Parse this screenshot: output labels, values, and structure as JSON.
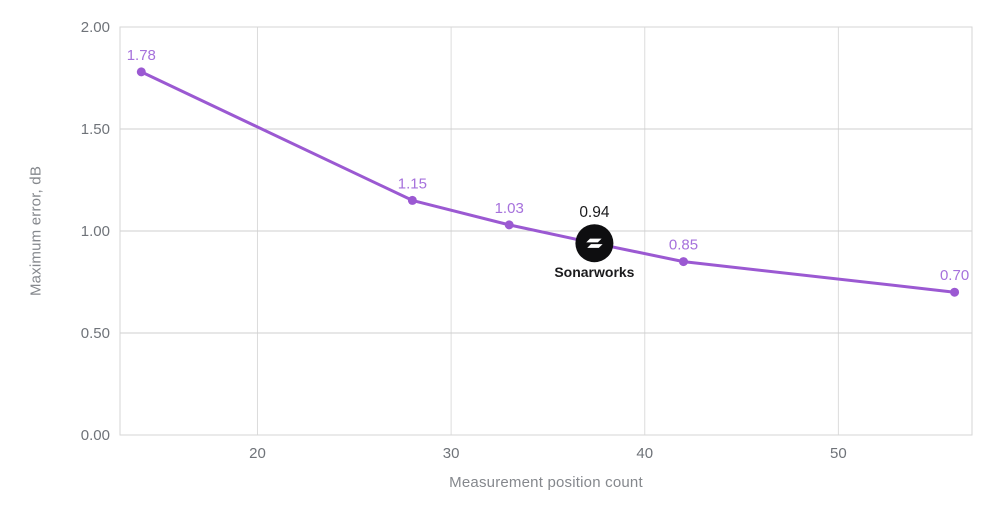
{
  "chart_data": {
    "type": "line",
    "title": "",
    "xlabel": "Measurement position count",
    "ylabel": "Maximum error, dB",
    "xlim": [
      12.9,
      56.9
    ],
    "ylim": [
      0,
      2
    ],
    "xticks": [
      20,
      30,
      40,
      50
    ],
    "yticks": [
      0,
      0.5,
      1,
      1.5,
      2
    ],
    "ytick_labels": [
      "0.00",
      "0.50",
      "1.00",
      "1.50",
      "2.00"
    ],
    "grid": true,
    "legend": false,
    "series": [
      {
        "name": "Maximum error",
        "color": "#9b59d2",
        "label_color": "#a671dc",
        "points": [
          {
            "x": 14,
            "y": 1.78,
            "label": "1.78"
          },
          {
            "x": 28,
            "y": 1.15,
            "label": "1.15"
          },
          {
            "x": 33,
            "y": 1.03,
            "label": "1.03"
          },
          {
            "x": 37.4,
            "y": 0.94,
            "label": "0.94",
            "annotated": true
          },
          {
            "x": 42,
            "y": 0.85,
            "label": "0.85"
          },
          {
            "x": 56,
            "y": 0.7,
            "label": "0.70"
          }
        ]
      }
    ],
    "annotation": {
      "label": "0.94",
      "brand": "Sonarworks",
      "marker_color": "#0e0e10",
      "glyph_color": "#ffffff",
      "text_color": "#1b1b1d",
      "icon": "sonarworks-logo-icon"
    },
    "colors": {
      "background": "#ffffff",
      "grid_vertical": "#dcdcdc",
      "grid_horizontal": "#cfcfcf",
      "plot_border": "#d6d6d6",
      "tick_label": "#6f7control276",
      "tick_label_color": "#6f7379",
      "axis_title": "#85888d"
    }
  }
}
